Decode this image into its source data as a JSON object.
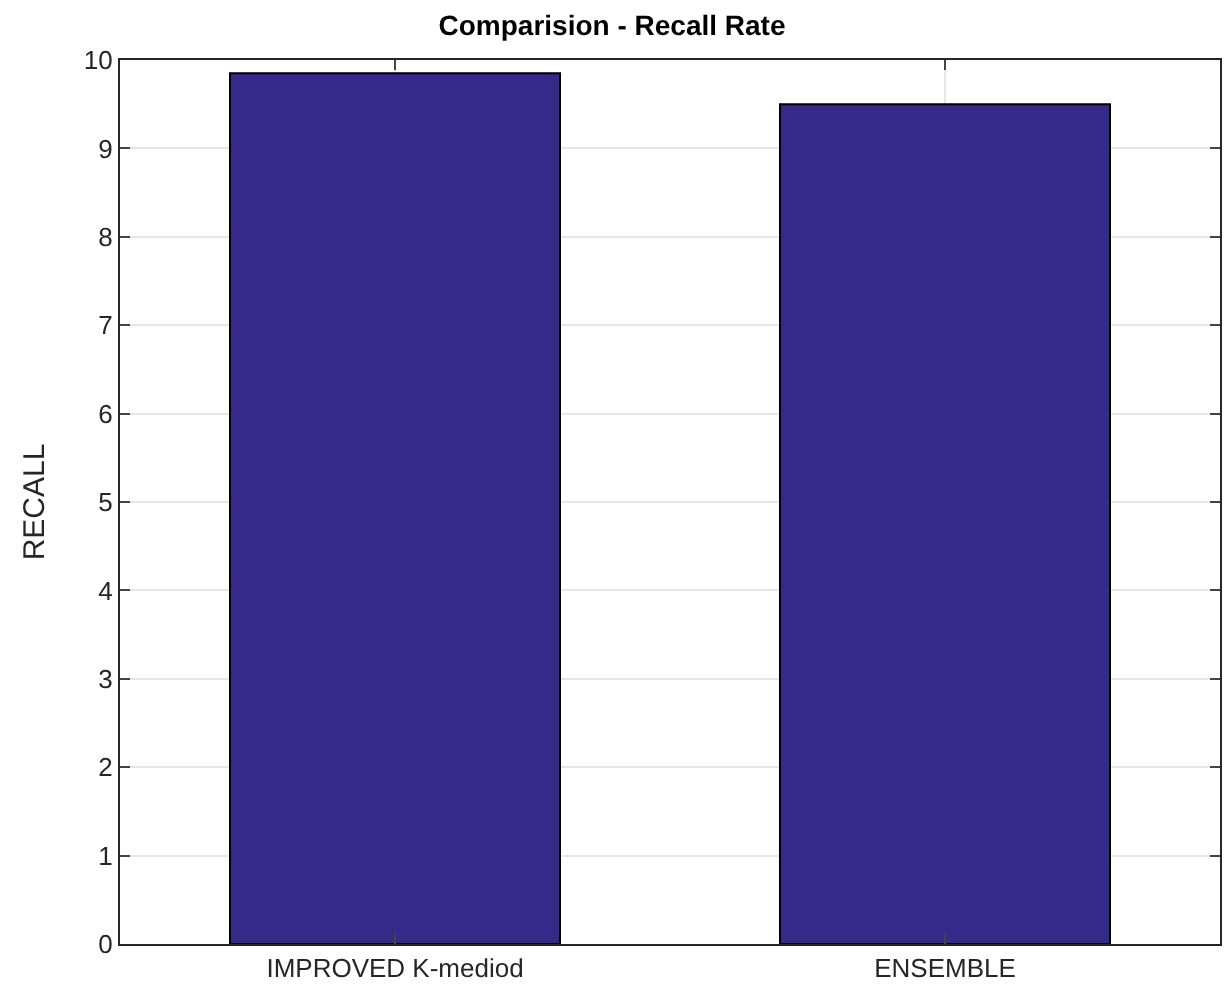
{
  "chart_data": {
    "type": "bar",
    "title": "Comparision - Recall Rate",
    "ylabel": "RECALL",
    "categories": [
      "IMPROVED K-mediod",
      "ENSEMBLE"
    ],
    "series": [
      {
        "color": "#352a87",
        "values": [
          9.85,
          9.5
        ]
      }
    ],
    "ylim": [
      0,
      10
    ],
    "yticks": [
      0,
      1,
      2,
      3,
      4,
      5,
      6,
      7,
      8,
      9,
      10
    ],
    "grid": true,
    "legend": false
  }
}
